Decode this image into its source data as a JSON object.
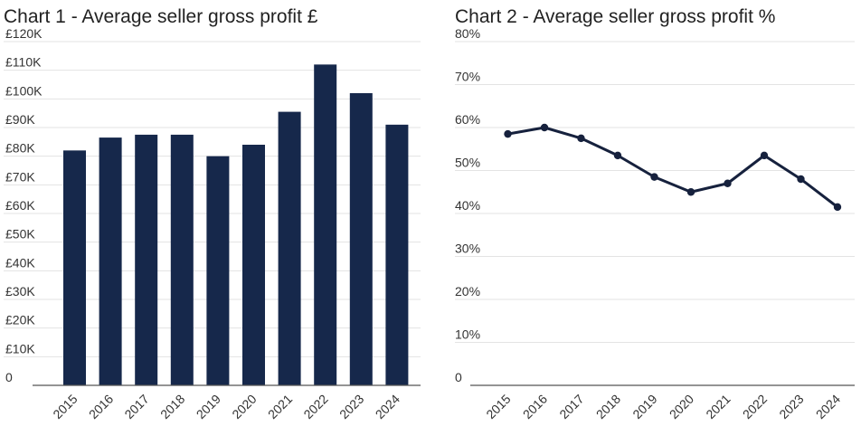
{
  "chart_data": [
    {
      "type": "bar",
      "title": "Chart 1 - Average seller gross profit £",
      "categories": [
        "2015",
        "2016",
        "2017",
        "2018",
        "2019",
        "2020",
        "2021",
        "2022",
        "2023",
        "2024"
      ],
      "values": [
        82000,
        86500,
        87500,
        87500,
        80000,
        84000,
        95500,
        112000,
        102000,
        91000
      ],
      "ylim": [
        0,
        120000
      ],
      "y_ticks": [
        "0",
        "£10K",
        "£20K",
        "£30K",
        "£40K",
        "£50K",
        "£60K",
        "£70K",
        "£80K",
        "£90K",
        "£100K",
        "£110K",
        "£120K"
      ],
      "grid": true,
      "colors": {
        "bar": "#16284b"
      }
    },
    {
      "type": "line",
      "title": "Chart 2 - Average seller gross profit %",
      "categories": [
        "2015",
        "2016",
        "2017",
        "2018",
        "2019",
        "2020",
        "2021",
        "2022",
        "2023",
        "2024"
      ],
      "values": [
        58.5,
        60,
        57.5,
        53.5,
        48.5,
        45,
        47,
        53.5,
        48,
        41.5
      ],
      "ylim": [
        0,
        80
      ],
      "y_ticks": [
        "0",
        "10%",
        "20%",
        "30%",
        "40%",
        "50%",
        "60%",
        "70%",
        "80%"
      ],
      "grid": true,
      "colors": {
        "line": "#16213d"
      }
    }
  ]
}
